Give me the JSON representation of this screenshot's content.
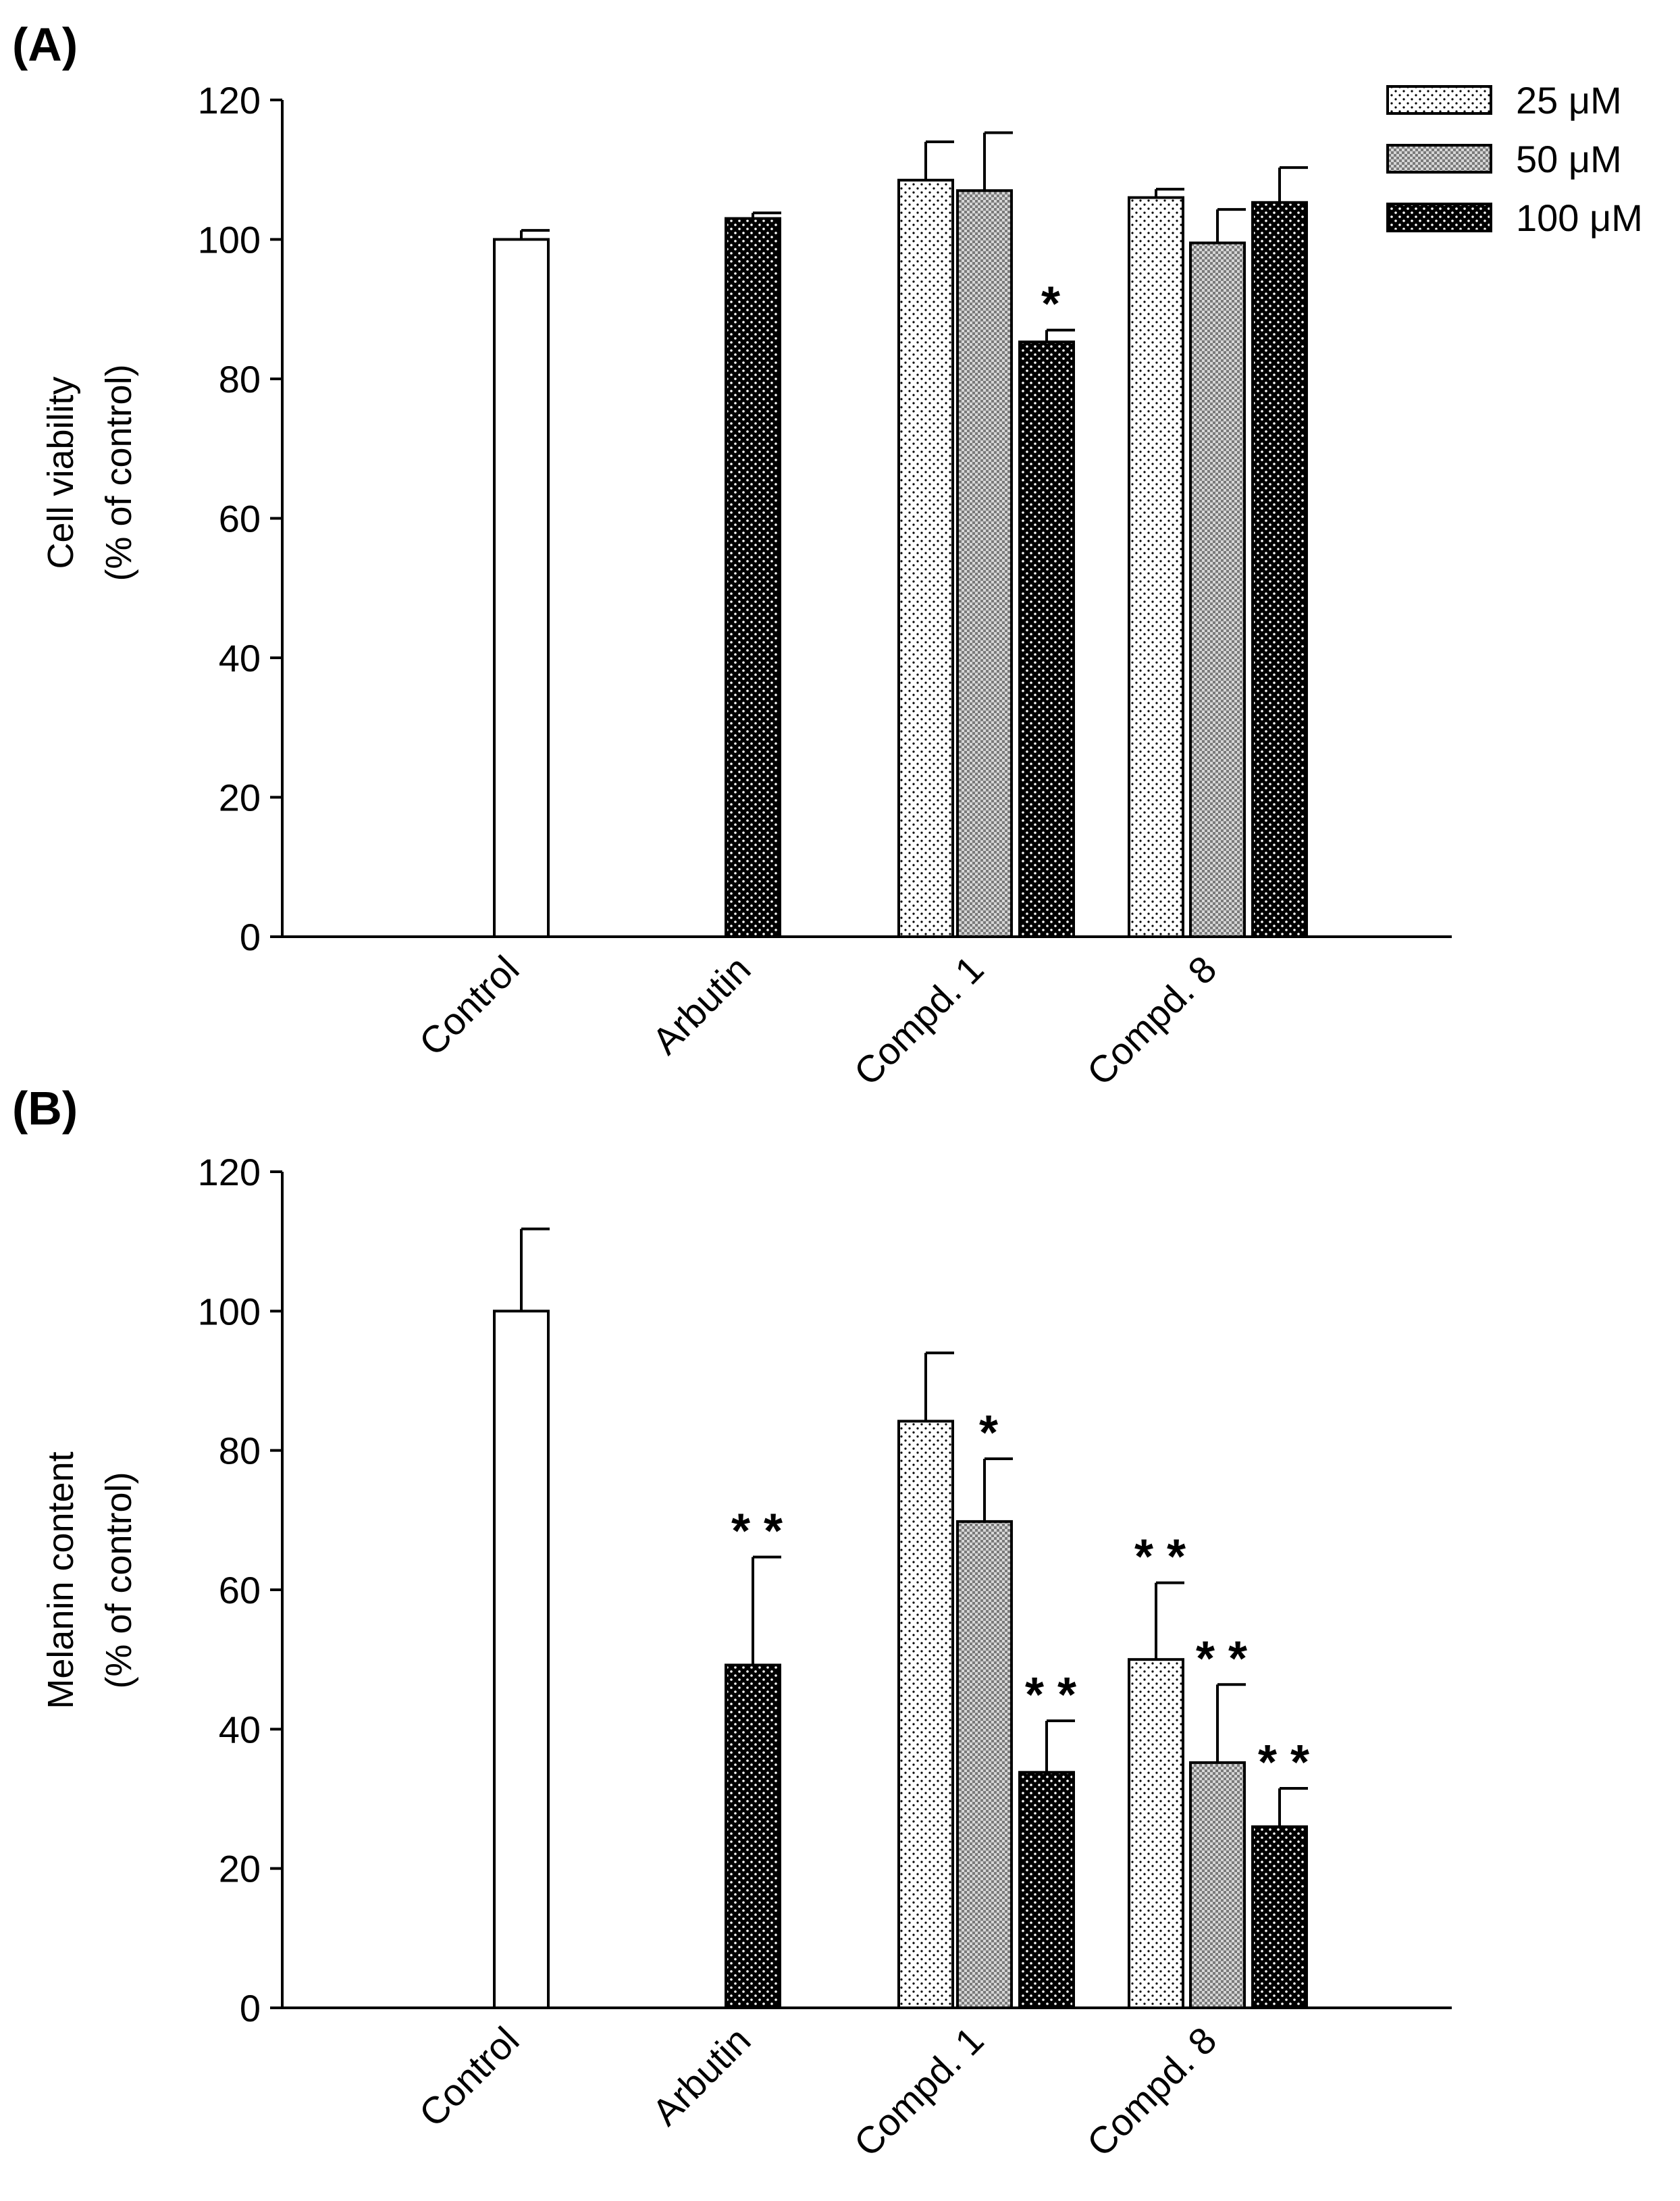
{
  "legend": [
    {
      "label": "25 μM",
      "pattern": "light-dots"
    },
    {
      "label": "50 μM",
      "pattern": "medium-grid"
    },
    {
      "label": "100 μM",
      "pattern": "dark-dots"
    }
  ],
  "colors": {
    "axis": "#000000",
    "background": "#ffffff",
    "bar_edge": "#000000"
  },
  "chart_data": [
    {
      "type": "bar",
      "panel_label": "(A)",
      "ylabel_line1": "Cell viability",
      "ylabel_line2": "(% of control)",
      "ylim": [
        0,
        120
      ],
      "yticks": [
        0,
        20,
        40,
        60,
        80,
        100,
        120
      ],
      "yticks_text": [
        "0",
        "20",
        "40",
        "60",
        "80",
        "100",
        "120"
      ],
      "categories": [
        "Control",
        "Arbutin",
        "Compd. 1",
        "Compd. 8"
      ],
      "bars": [
        {
          "category": "Control",
          "series": "control",
          "value": 100,
          "error": 1.3,
          "sig": ""
        },
        {
          "category": "Arbutin",
          "series": "100 μM",
          "value": 103,
          "error": 0.8,
          "sig": ""
        },
        {
          "category": "Compd. 1",
          "series": "25 μM",
          "value": 108.5,
          "error": 5.5,
          "sig": ""
        },
        {
          "category": "Compd. 1",
          "series": "50 μM",
          "value": 107,
          "error": 8.3,
          "sig": ""
        },
        {
          "category": "Compd. 1",
          "series": "100 μM",
          "value": 85.3,
          "error": 1.7,
          "sig": "*"
        },
        {
          "category": "Compd. 8",
          "series": "25 μM",
          "value": 106,
          "error": 1.2,
          "sig": ""
        },
        {
          "category": "Compd. 8",
          "series": "50 μM",
          "value": 99.5,
          "error": 4.8,
          "sig": ""
        },
        {
          "category": "Compd. 8",
          "series": "100 μM",
          "value": 105.3,
          "error": 5,
          "sig": ""
        }
      ]
    },
    {
      "type": "bar",
      "panel_label": "(B)",
      "ylabel_line1": "Melanin content",
      "ylabel_line2": "(% of control)",
      "ylim": [
        0,
        120
      ],
      "yticks": [
        0,
        20,
        40,
        60,
        80,
        100,
        120
      ],
      "yticks_text": [
        "0",
        "20",
        "40",
        "60",
        "80",
        "100",
        "120"
      ],
      "categories": [
        "Control",
        "Arbutin",
        "Compd. 1",
        "Compd. 8"
      ],
      "bars": [
        {
          "category": "Control",
          "series": "control",
          "value": 100,
          "error": 11.8,
          "sig": ""
        },
        {
          "category": "Arbutin",
          "series": "100 μM",
          "value": 49.2,
          "error": 15.5,
          "sig": "**"
        },
        {
          "category": "Compd. 1",
          "series": "25 μM",
          "value": 84.2,
          "error": 9.8,
          "sig": ""
        },
        {
          "category": "Compd. 1",
          "series": "50 μM",
          "value": 69.8,
          "error": 9,
          "sig": "*"
        },
        {
          "category": "Compd. 1",
          "series": "100 μM",
          "value": 33.8,
          "error": 7.4,
          "sig": "**"
        },
        {
          "category": "Compd. 8",
          "series": "25 μM",
          "value": 50,
          "error": 11,
          "sig": "**"
        },
        {
          "category": "Compd. 8",
          "series": "50 μM",
          "value": 35.2,
          "error": 11.2,
          "sig": "**"
        },
        {
          "category": "Compd. 8",
          "series": "100 μM",
          "value": 26,
          "error": 5.5,
          "sig": "**"
        }
      ]
    }
  ]
}
